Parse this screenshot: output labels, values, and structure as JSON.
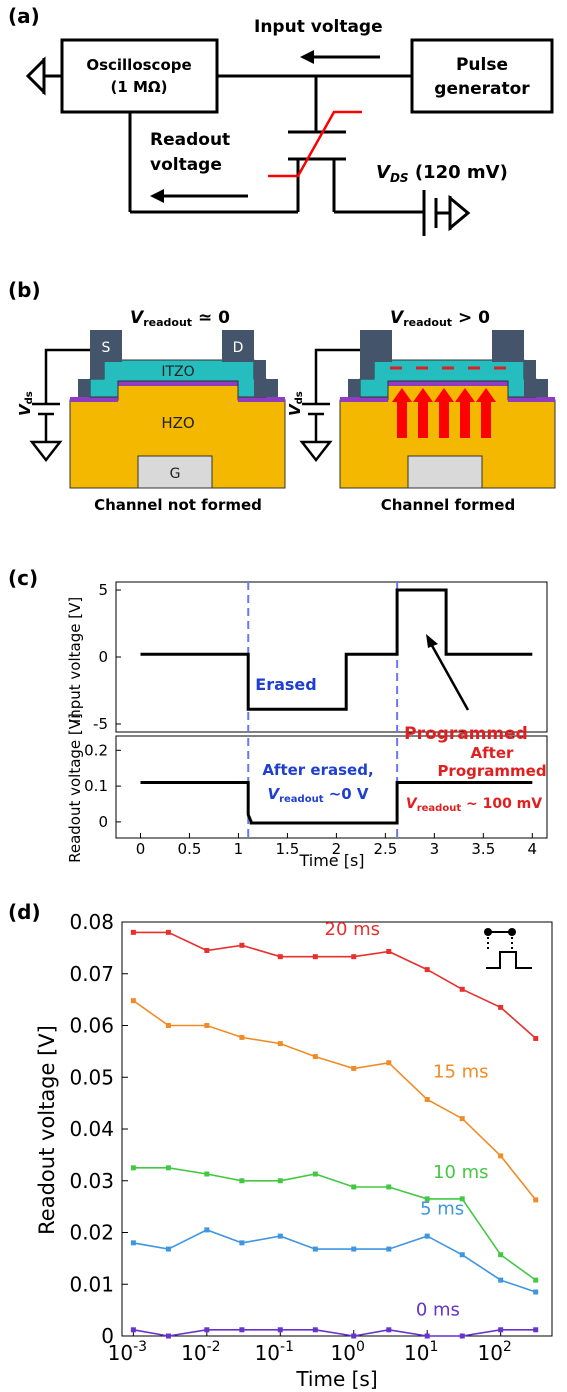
{
  "panel_a": {
    "label": "(a)",
    "oscilloscope": [
      "Oscilloscope",
      "(1 MΩ)"
    ],
    "pulse_generator": [
      "Pulse",
      "generator"
    ],
    "input_voltage": "Input voltage",
    "readout_voltage": [
      "Readout",
      "voltage"
    ],
    "vds_symbol": "V",
    "vds_sub": "DS",
    "vds_value": " (120 mV)"
  },
  "panel_b": {
    "label": "(b)",
    "left": {
      "v_symbol": "V",
      "v_sub": "readout",
      "v_rel": " ≃ 0",
      "S": "S",
      "D": "D",
      "ITZO": "ITZO",
      "HZO": "HZO",
      "G": "G",
      "caption": "Channel not formed",
      "vds": "V",
      "vds_sub": "ds"
    },
    "right": {
      "v_symbol": "V",
      "v_sub": "readout",
      "v_rel": " > 0",
      "caption": "Channel formed",
      "vds": "V",
      "vds_sub": "ds"
    },
    "colors": {
      "electrode": "#44546a",
      "itzo": "#25bdbd",
      "hzo": "#f5b800",
      "gate": "#d9d9d9",
      "interlayer": "#8e3cc0",
      "arrow": "#ff0000"
    }
  },
  "panel_c": {
    "label": "(c)",
    "top_ylabel": "Input voltage [V]",
    "bottom_ylabel": "Readout voltage [V]",
    "xlabel": "Time [s]",
    "top_yticks": [
      "5",
      "0",
      "-5"
    ],
    "bottom_yticks": [
      "0.2",
      "0.1",
      "0"
    ],
    "xticks": [
      "0",
      "0.5",
      "1",
      "1.5",
      "2",
      "2.5",
      "3",
      "3.5",
      "4"
    ],
    "erased": "Erased",
    "programmed": "Programmed",
    "after_erased": "After erased,",
    "after_erased_v": "V",
    "after_erased_sub": "readout",
    "after_erased_val": " ~0 V",
    "after_programmed": [
      "After",
      "Programmed"
    ],
    "after_prog_v": "V",
    "after_prog_sub": "readout",
    "after_prog_val": " ~ 100 mV"
  },
  "chart_data": [
    {
      "type": "line",
      "title": "",
      "xlabel": "Time [s]",
      "ylabel": "Input voltage [V]",
      "xlim": [
        -0.25,
        4.15
      ],
      "ylim": [
        -5.6,
        5.6
      ],
      "x": [
        0,
        1.1,
        1.1,
        2.1,
        2.1,
        2.62,
        2.62,
        3.12,
        3.12,
        4
      ],
      "y": [
        0.2,
        0.2,
        -3.9,
        -3.9,
        0.2,
        0.2,
        5.0,
        5.0,
        0.2,
        0.2
      ],
      "markers": [
        1.1,
        2.62
      ],
      "annotations": [
        "Erased",
        "Programmed"
      ]
    },
    {
      "type": "line",
      "title": "",
      "xlabel": "Time [s]",
      "ylabel": "Readout voltage [V]",
      "xlim": [
        -0.25,
        4.15
      ],
      "ylim": [
        -0.045,
        0.24
      ],
      "x": [
        0,
        1.1,
        1.1,
        1.13,
        1.13,
        2.62,
        2.62,
        4
      ],
      "y": [
        0.11,
        0.11,
        0.02,
        0.0,
        -0.003,
        -0.003,
        0.11,
        0.11
      ],
      "markers": [
        1.1,
        2.62
      ]
    },
    {
      "type": "line",
      "title": "",
      "xlabel": "Time [s]",
      "ylabel": "Readout voltage [V]",
      "xscale": "log",
      "xlim": [
        0.0007,
        500
      ],
      "ylim": [
        0,
        0.08
      ],
      "yticks": [
        "0",
        "0.01",
        "0.02",
        "0.03",
        "0.04",
        "0.05",
        "0.06",
        "0.07",
        "0.08"
      ],
      "xticks": [
        {
          "base": "10",
          "exp": "-3"
        },
        {
          "base": "10",
          "exp": "-2"
        },
        {
          "base": "10",
          "exp": "-1"
        },
        {
          "base": "10",
          "exp": "0"
        },
        {
          "base": "10",
          "exp": "1"
        },
        {
          "base": "10",
          "exp": "2"
        }
      ],
      "x": [
        0.001,
        0.003,
        0.01,
        0.03,
        0.1,
        0.3,
        1,
        3,
        10,
        30,
        100,
        300
      ],
      "series": [
        {
          "name": "20 ms",
          "color": "#e8302e",
          "values": [
            0.078,
            0.078,
            0.0745,
            0.0755,
            0.0733,
            0.0733,
            0.0733,
            0.0743,
            0.0708,
            0.067,
            0.0635,
            0.0575
          ]
        },
        {
          "name": "15 ms",
          "color": "#f08c28",
          "values": [
            0.0648,
            0.06,
            0.06,
            0.0577,
            0.0565,
            0.054,
            0.0517,
            0.0528,
            0.0457,
            0.042,
            0.0348,
            0.0263
          ]
        },
        {
          "name": "10 ms",
          "color": "#44c844",
          "values": [
            0.0325,
            0.0325,
            0.0313,
            0.03,
            0.03,
            0.0313,
            0.0288,
            0.0288,
            0.0265,
            0.0265,
            0.0157,
            0.0108
          ]
        },
        {
          "name": "5 ms",
          "color": "#3f95e0",
          "values": [
            0.018,
            0.0168,
            0.0205,
            0.018,
            0.0193,
            0.0168,
            0.0168,
            0.0168,
            0.0193,
            0.0157,
            0.0108,
            0.0085
          ]
        },
        {
          "name": "0 ms",
          "color": "#6633cc",
          "values": [
            0.0012,
            0.0,
            0.0012,
            0.0012,
            0.0012,
            0.0012,
            0.0,
            0.0012,
            0.0,
            0.0,
            0.0012,
            0.0012
          ]
        }
      ]
    }
  ]
}
